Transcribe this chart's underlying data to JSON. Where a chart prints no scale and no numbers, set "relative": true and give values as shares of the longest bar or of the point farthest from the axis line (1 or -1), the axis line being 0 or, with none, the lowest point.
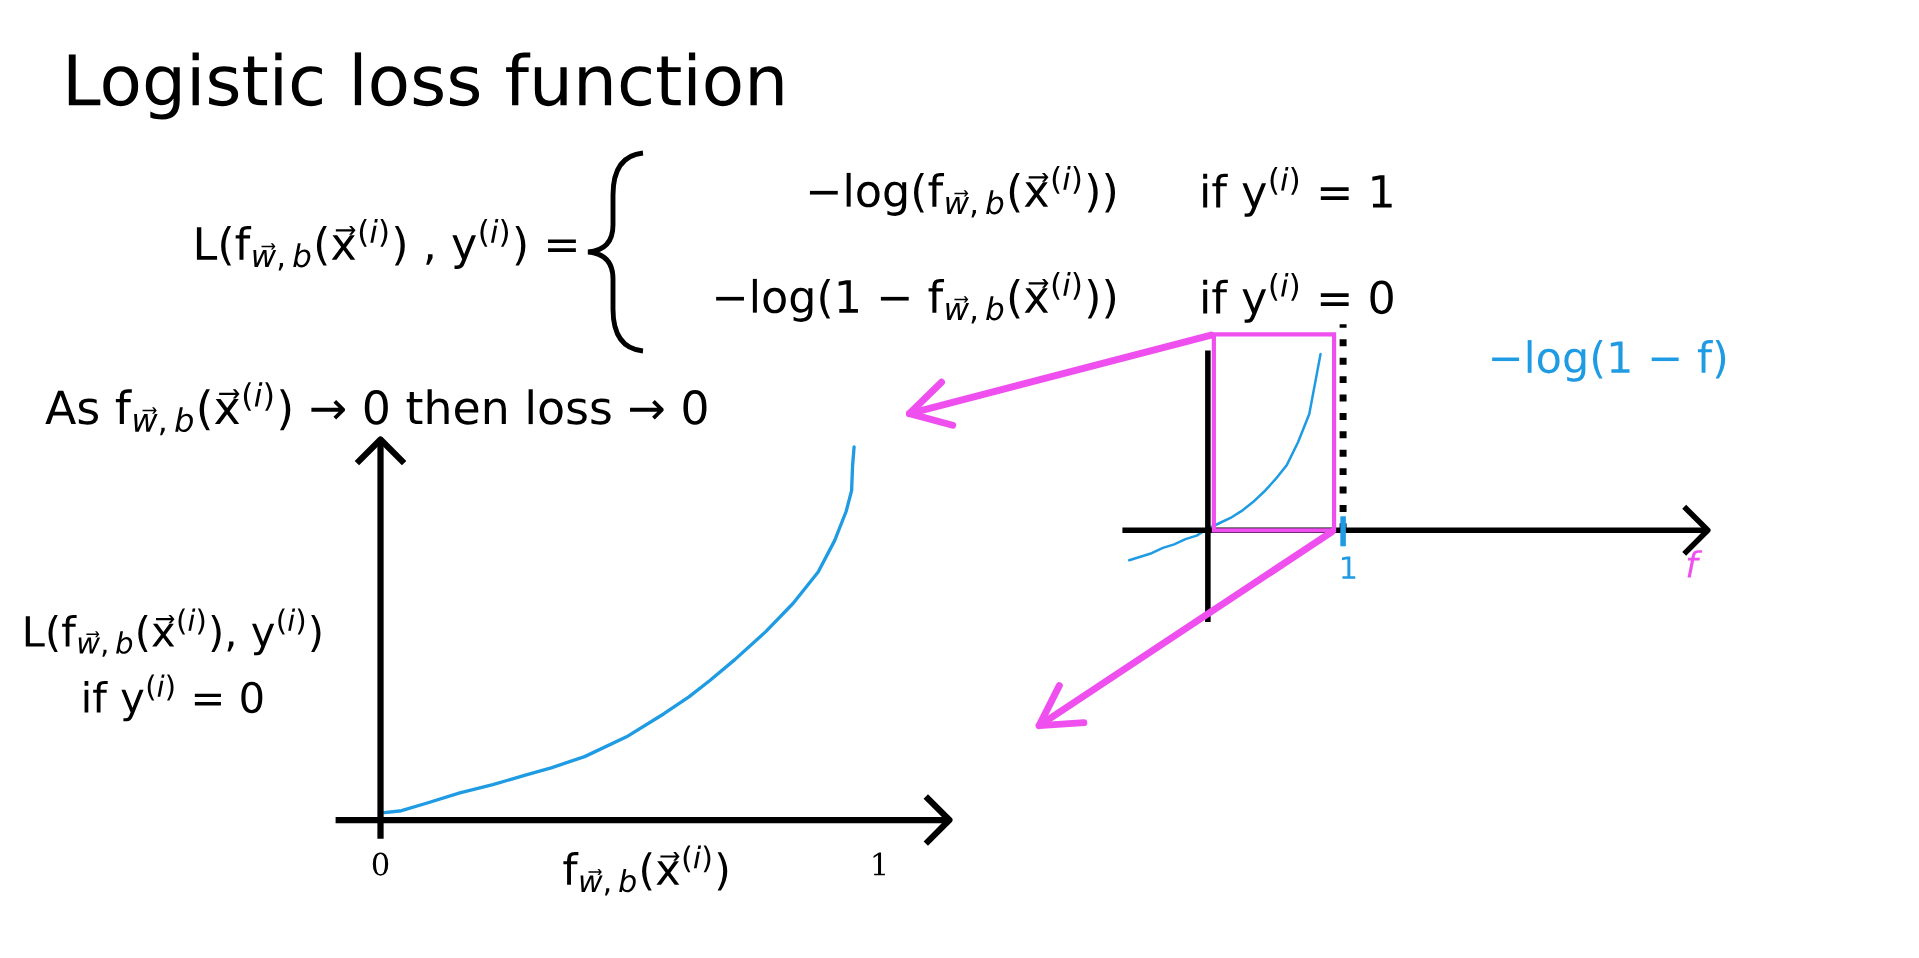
{
  "chart_data": [
    {
      "type": "line",
      "title": "Logistic loss function",
      "xlabel": "f$_{w⃗,b}$(x⃗$^{(i)}$)",
      "ylabel": "L(f$_{w⃗,b}$(x⃗$^{(i)}$), y$^{(i)}$)\nif y$^{(i)}$ = 0",
      "annotations": [
        "L(f$_{w⃗,b}$(x⃗$^{(i)}$) , y$^{(i)}$) =",
        "−log(f$_{w⃗,b}$(x⃗$^{(i)}$))",
        "if y$^{(i)}$ = 1",
        "−log(1 − f$_{w⃗,b}$(x⃗$^{(i)}$))",
        "if y$^{(i)}$ = 0",
        "As f$_{w⃗,b}$(x⃗$^{(i)}$) → 0 then loss → 0"
      ],
      "x": [
        0.008,
        0.042,
        0.092,
        0.159,
        0.225,
        0.292,
        0.342,
        0.409,
        0.493,
        0.568,
        0.618,
        0.66,
        0.71,
        0.772,
        0.827,
        0.877,
        0.91,
        0.933,
        0.944,
        0.946,
        0.949
      ],
      "series": [
        {
          "color": "#1f9be3",
          "values": [
            0.02,
            0.025,
            0.045,
            0.073,
            0.095,
            0.121,
            0.14,
            0.17,
            0.223,
            0.285,
            0.33,
            0.374,
            0.43,
            0.505,
            0.581,
            0.665,
            0.749,
            0.827,
            0.883,
            0.95,
            1
          ]
        }
      ],
      "relative": true,
      "xlim": [
        -0.09,
        1.14
      ],
      "xticks": [
        0,
        1
      ],
      "line_style": "solid"
    },
    {
      "type": "line",
      "xlabel": "f",
      "annotations": [
        "1"
      ],
      "categories": [
        null,
        null,
        null,
        null,
        null,
        null,
        null,
        null,
        null,
        null,
        null,
        null,
        null,
        null,
        null,
        null,
        null,
        null,
        null,
        null,
        null,
        null,
        null,
        null,
        null,
        null,
        null,
        null,
        null,
        null,
        null,
        null,
        null,
        null,
        null,
        null,
        null,
        null,
        null,
        null,
        null,
        null,
        null,
        null,
        null,
        null,
        null,
        null,
        null,
        null,
        null,
        null
      ],
      "series": [
        {
          "name": "−log(1 − f)",
          "color": "#1f9be3",
          "values": [
            -0.17,
            -0.15,
            -0.13,
            -0.1,
            -0.08,
            -0.05,
            -0.03,
            0.01,
            0.04,
            0.07,
            0.11,
            0.16,
            0.22,
            0.29,
            0.37,
            0.5,
            0.66,
            1,
            null,
            null,
            null,
            null,
            null,
            null,
            null,
            null,
            null,
            null,
            null,
            null,
            null,
            null,
            null,
            null,
            null,
            null,
            null,
            null,
            null,
            null,
            null,
            null,
            null,
            null,
            null,
            null,
            null,
            null,
            null,
            null,
            null,
            null
          ]
        }
      ],
      "relative": true,
      "line_style": "solid"
    }
  ]
}
